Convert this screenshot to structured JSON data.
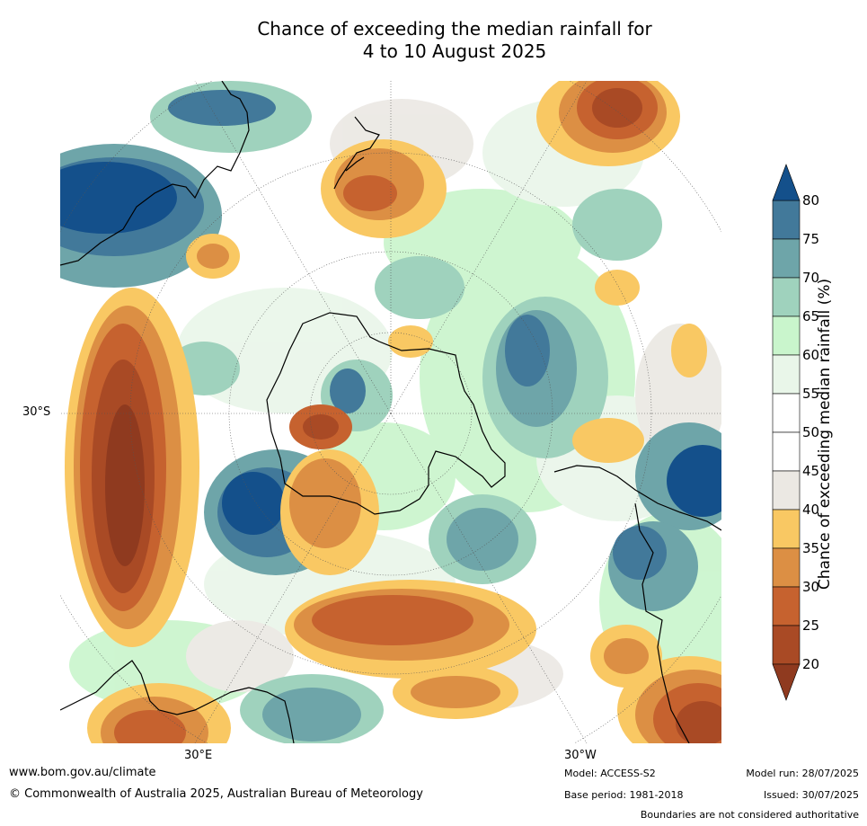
{
  "title_line1": "Chance of exceeding the median rainfall for",
  "title_line2": "4 to 10 August 2025",
  "map": {
    "lat_label": "30°S",
    "lon_label_east": "30°E",
    "lon_label_west": "30°W",
    "projection": "south-polar-stereographic"
  },
  "colorbar": {
    "label": "Chance of exceeding median rainfall (%)",
    "ticks": [
      "80",
      "75",
      "70",
      "65",
      "60",
      "55",
      "50",
      "45",
      "40",
      "35",
      "30",
      "25",
      "20"
    ],
    "bins": [
      {
        "range": "<20",
        "color": "#8f3a1f"
      },
      {
        "range": "20-25",
        "color": "#a94a25"
      },
      {
        "range": "25-30",
        "color": "#c6622f"
      },
      {
        "range": "30-35",
        "color": "#dc8f44"
      },
      {
        "range": "35-40",
        "color": "#f9c863"
      },
      {
        "range": "40-45",
        "color": "#ebe8e3"
      },
      {
        "range": "45-50",
        "color": "#ffffff"
      },
      {
        "range": "50-55",
        "color": "#ffffff"
      },
      {
        "range": "55-60",
        "color": "#e9f6e9"
      },
      {
        "range": "60-65",
        "color": "#c9f5cc"
      },
      {
        "range": "65-70",
        "color": "#9fd2bd"
      },
      {
        "range": "70-75",
        "color": "#6ea5a9"
      },
      {
        "range": "75-80",
        "color": "#42799a"
      },
      {
        "range": ">80",
        "color": "#14508b"
      }
    ]
  },
  "footer": {
    "url": "www.bom.gov.au/climate",
    "copyright": "© Commonwealth of Australia 2025, Australian Bureau of Meteorology",
    "model": "Model: ACCESS-S2",
    "base_period": "Base period: 1981-2018",
    "model_run": "Model run: 28/07/2025",
    "issued": "Issued: 30/07/2025",
    "disclaimer": "Boundaries are not considered authoritative"
  }
}
